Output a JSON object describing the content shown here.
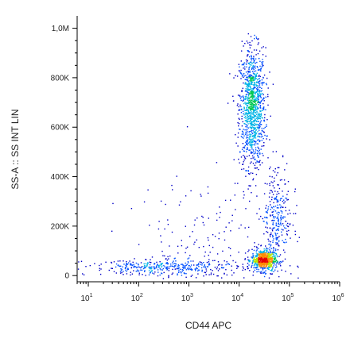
{
  "chart_data": {
    "type": "scatter",
    "title": "",
    "xlabel": "CD44 APC",
    "ylabel": "SS-A :: SS INT LIN",
    "x_scale": "log",
    "xlim": [
      6,
      1000000
    ],
    "ylim": [
      -25000,
      1050000
    ],
    "x_ticks": [
      {
        "value": 10,
        "base": "10",
        "exp": "1"
      },
      {
        "value": 100,
        "base": "10",
        "exp": "2"
      },
      {
        "value": 1000,
        "base": "10",
        "exp": "3"
      },
      {
        "value": 10000,
        "base": "10",
        "exp": "4"
      },
      {
        "value": 100000,
        "base": "10",
        "exp": "5"
      },
      {
        "value": 1000000,
        "base": "10",
        "exp": "6"
      }
    ],
    "y_ticks": [
      {
        "value": 0,
        "label": "0"
      },
      {
        "value": 200000,
        "label": "200K"
      },
      {
        "value": 400000,
        "label": "400K"
      },
      {
        "value": 600000,
        "label": "600K"
      },
      {
        "value": 800000,
        "label": "800K"
      },
      {
        "value": 1000000,
        "label": "1,0M"
      }
    ],
    "color_scale": [
      "#0000c8",
      "#0050ff",
      "#00b4e6",
      "#00c850",
      "#b4e600",
      "#ff8c00",
      "#e60000"
    ],
    "populations": [
      {
        "cd44_median": 18000,
        "ssa_median": 680000,
        "cd44_spread_log10": 0.13,
        "ssa_spread": 120000,
        "weight": 0.44
      },
      {
        "cd44_median": 30000,
        "ssa_median": 65000,
        "cd44_spread_log10": 0.12,
        "ssa_spread": 22000,
        "weight": 0.24
      },
      {
        "cd44_median": 55000,
        "ssa_median": 230000,
        "cd44_spread_log10": 0.15,
        "ssa_spread": 110000,
        "weight": 0.12
      },
      {
        "cd44_median": 300,
        "ssa_median": 35000,
        "cd44_spread_log10": 0.75,
        "ssa_spread": 15000,
        "weight": 0.14
      },
      {
        "cd44_median": 2000,
        "ssa_median": 150000,
        "cd44_spread_log10": 0.6,
        "ssa_spread": 120000,
        "weight": 0.06
      }
    ]
  }
}
